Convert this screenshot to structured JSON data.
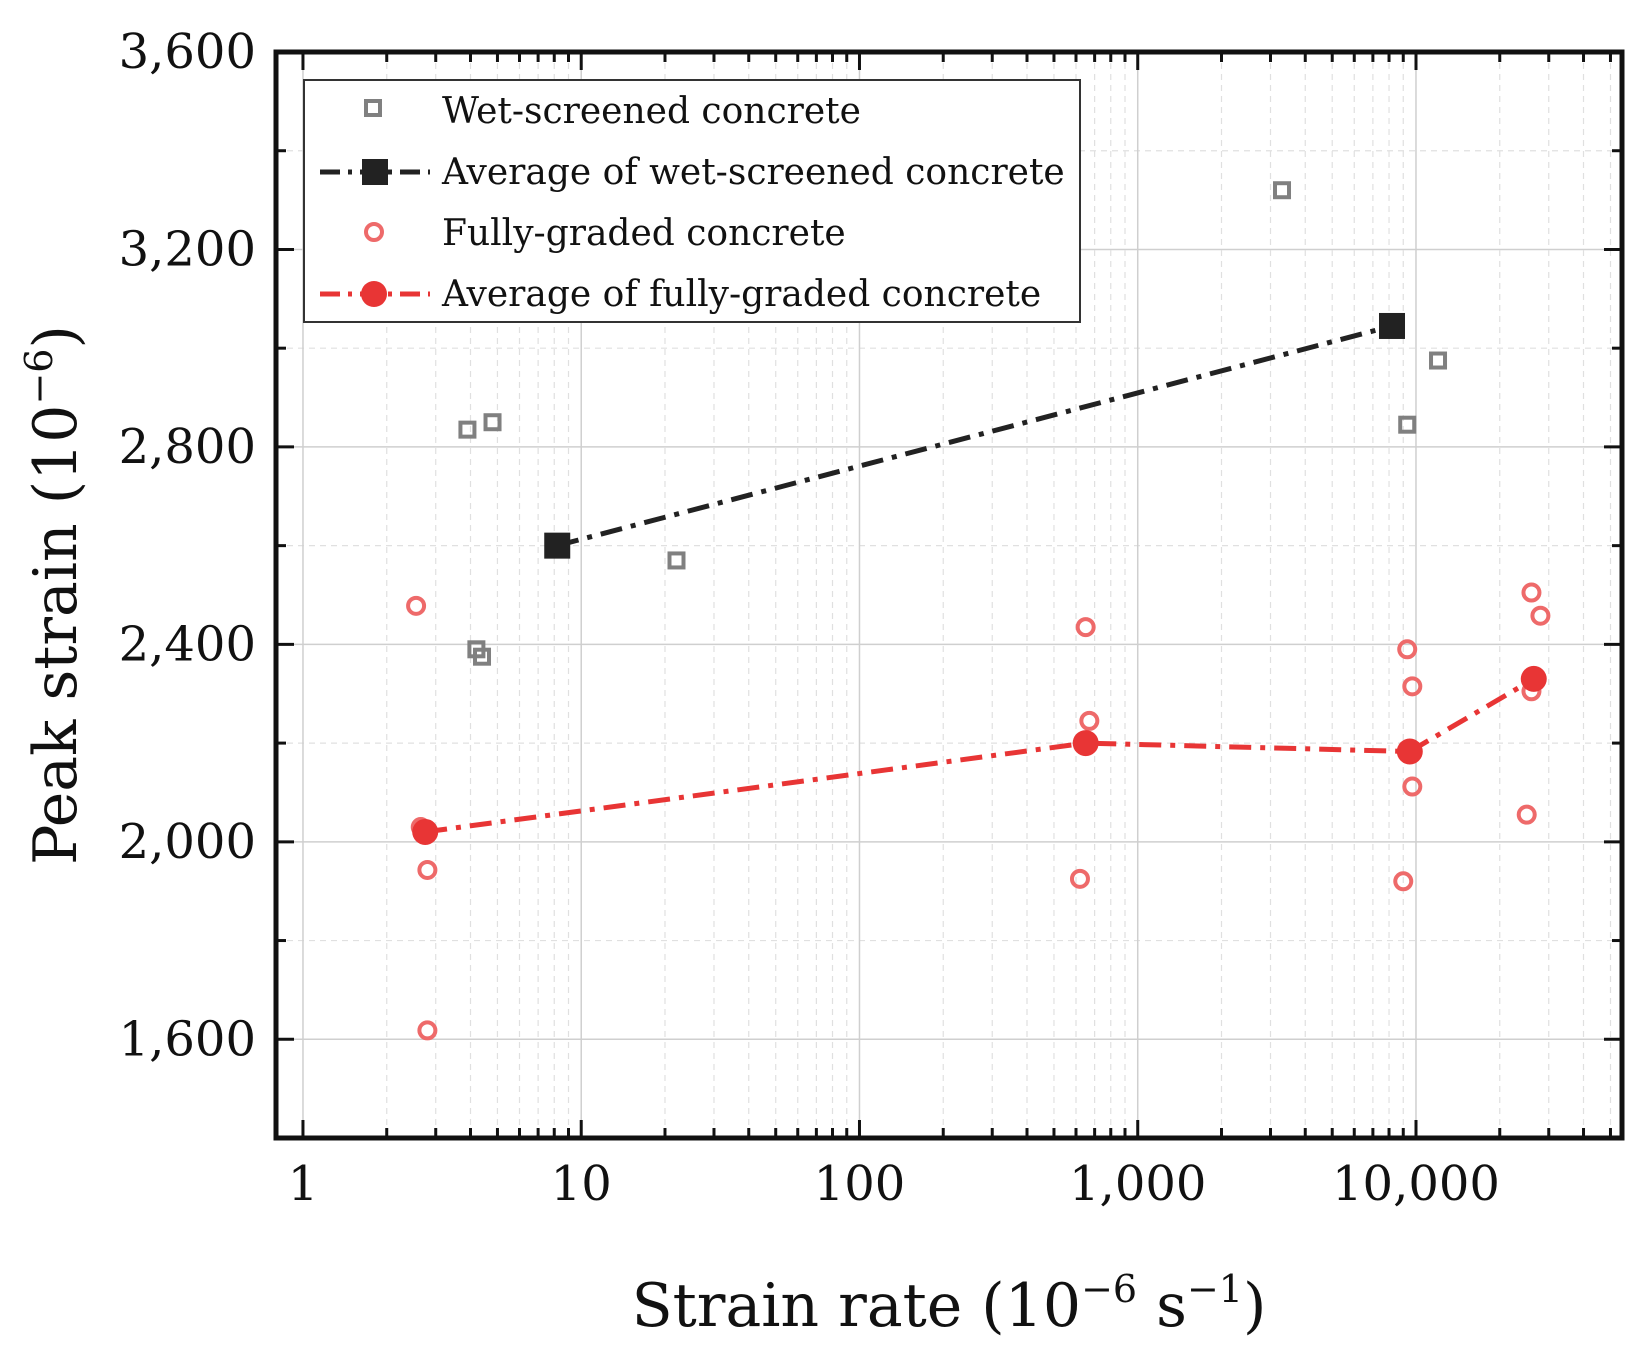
{
  "chart_data": {
    "type": "scatter",
    "xscale": "log",
    "xlim": [
      0.8,
      55000
    ],
    "ylim": [
      1400,
      3600
    ],
    "xticks": [
      1,
      10,
      100,
      1000,
      10000
    ],
    "xtick_labels": [
      "1",
      "10",
      "100",
      "1,000",
      "10,000"
    ],
    "yticks": [
      1600,
      2000,
      2400,
      2800,
      3200,
      3600
    ],
    "ytick_labels": [
      "1,600",
      "2,000",
      "2,400",
      "2,800",
      "3,200",
      "3,600"
    ],
    "xlabel": {
      "main": "Strain rate (10",
      "exp1": "−6",
      "mid": " s",
      "exp2": "−1",
      "end": ")"
    },
    "ylabel": {
      "main": "Peak strain (10",
      "exp": "−6",
      "end": ")"
    },
    "grid": true,
    "legend_position": "top-left",
    "colors": {
      "wet_points": "#808080",
      "wet_average": "#222222",
      "full_points": "#ee6a6a",
      "full_average": "#e83535"
    },
    "series": [
      {
        "name": "Wet-screened concrete",
        "kind": "scatter",
        "marker": "open-square",
        "points": [
          [
            3.9,
            2835
          ],
          [
            4.8,
            2850
          ],
          [
            4.2,
            2390
          ],
          [
            4.4,
            2375
          ],
          [
            22,
            2570
          ],
          [
            3300,
            3320
          ],
          [
            9300,
            2845
          ],
          [
            12000,
            2975
          ]
        ]
      },
      {
        "name": "Average of wet-screened concrete",
        "kind": "line",
        "marker": "filled-square",
        "points": [
          [
            8.2,
            2600
          ],
          [
            8200,
            3045
          ]
        ]
      },
      {
        "name": "Fully-graded concrete",
        "kind": "scatter",
        "marker": "open-circle",
        "points": [
          [
            2.55,
            2478
          ],
          [
            2.65,
            2030
          ],
          [
            2.8,
            1943
          ],
          [
            2.8,
            1618
          ],
          [
            620,
            1925
          ],
          [
            650,
            2435
          ],
          [
            670,
            2245
          ],
          [
            9000,
            1920
          ],
          [
            9300,
            2390
          ],
          [
            9700,
            2315
          ],
          [
            9700,
            2112
          ],
          [
            25000,
            2055
          ],
          [
            26000,
            2505
          ],
          [
            26000,
            2305
          ],
          [
            28000,
            2458
          ]
        ]
      },
      {
        "name": "Average of fully-graded concrete",
        "kind": "line",
        "marker": "filled-circle",
        "points": [
          [
            2.75,
            2020
          ],
          [
            650,
            2200
          ],
          [
            9500,
            2183
          ],
          [
            26500,
            2330
          ]
        ]
      }
    ]
  }
}
